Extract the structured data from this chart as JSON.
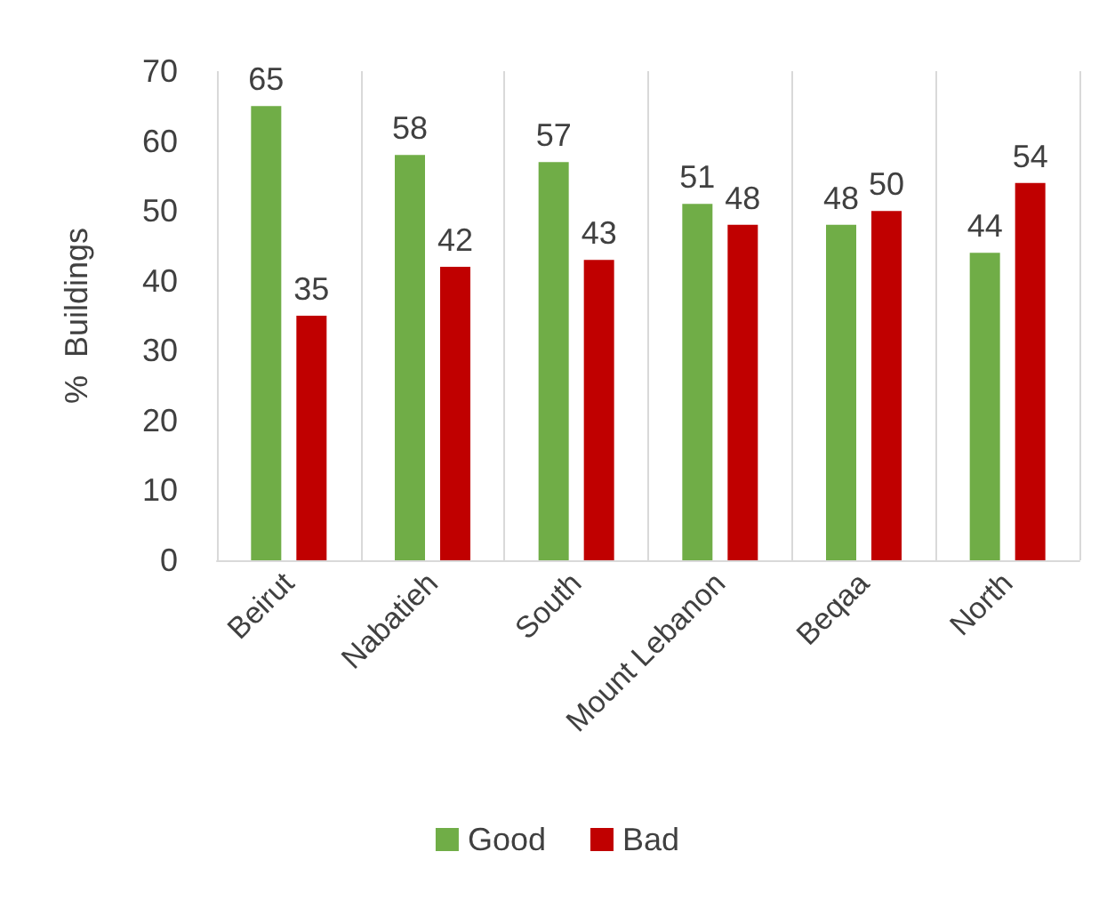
{
  "chart_data": {
    "type": "bar",
    "ylabel": "%  Buildings",
    "categories": [
      "Beirut",
      "Nabatieh",
      "South",
      "Mount Lebanon",
      "Beqaa",
      "North"
    ],
    "series": [
      {
        "name": "Good",
        "color": "#70ad47",
        "values": [
          65,
          58,
          57,
          51,
          48,
          44
        ]
      },
      {
        "name": "Bad",
        "color": "#c00000",
        "values": [
          35,
          42,
          43,
          48,
          50,
          54
        ]
      }
    ],
    "ylim": [
      0,
      70
    ],
    "yticks": [
      0,
      10,
      20,
      30,
      40,
      50,
      60,
      70
    ],
    "grid": "x",
    "legend": "bottom",
    "data_labels": true
  }
}
